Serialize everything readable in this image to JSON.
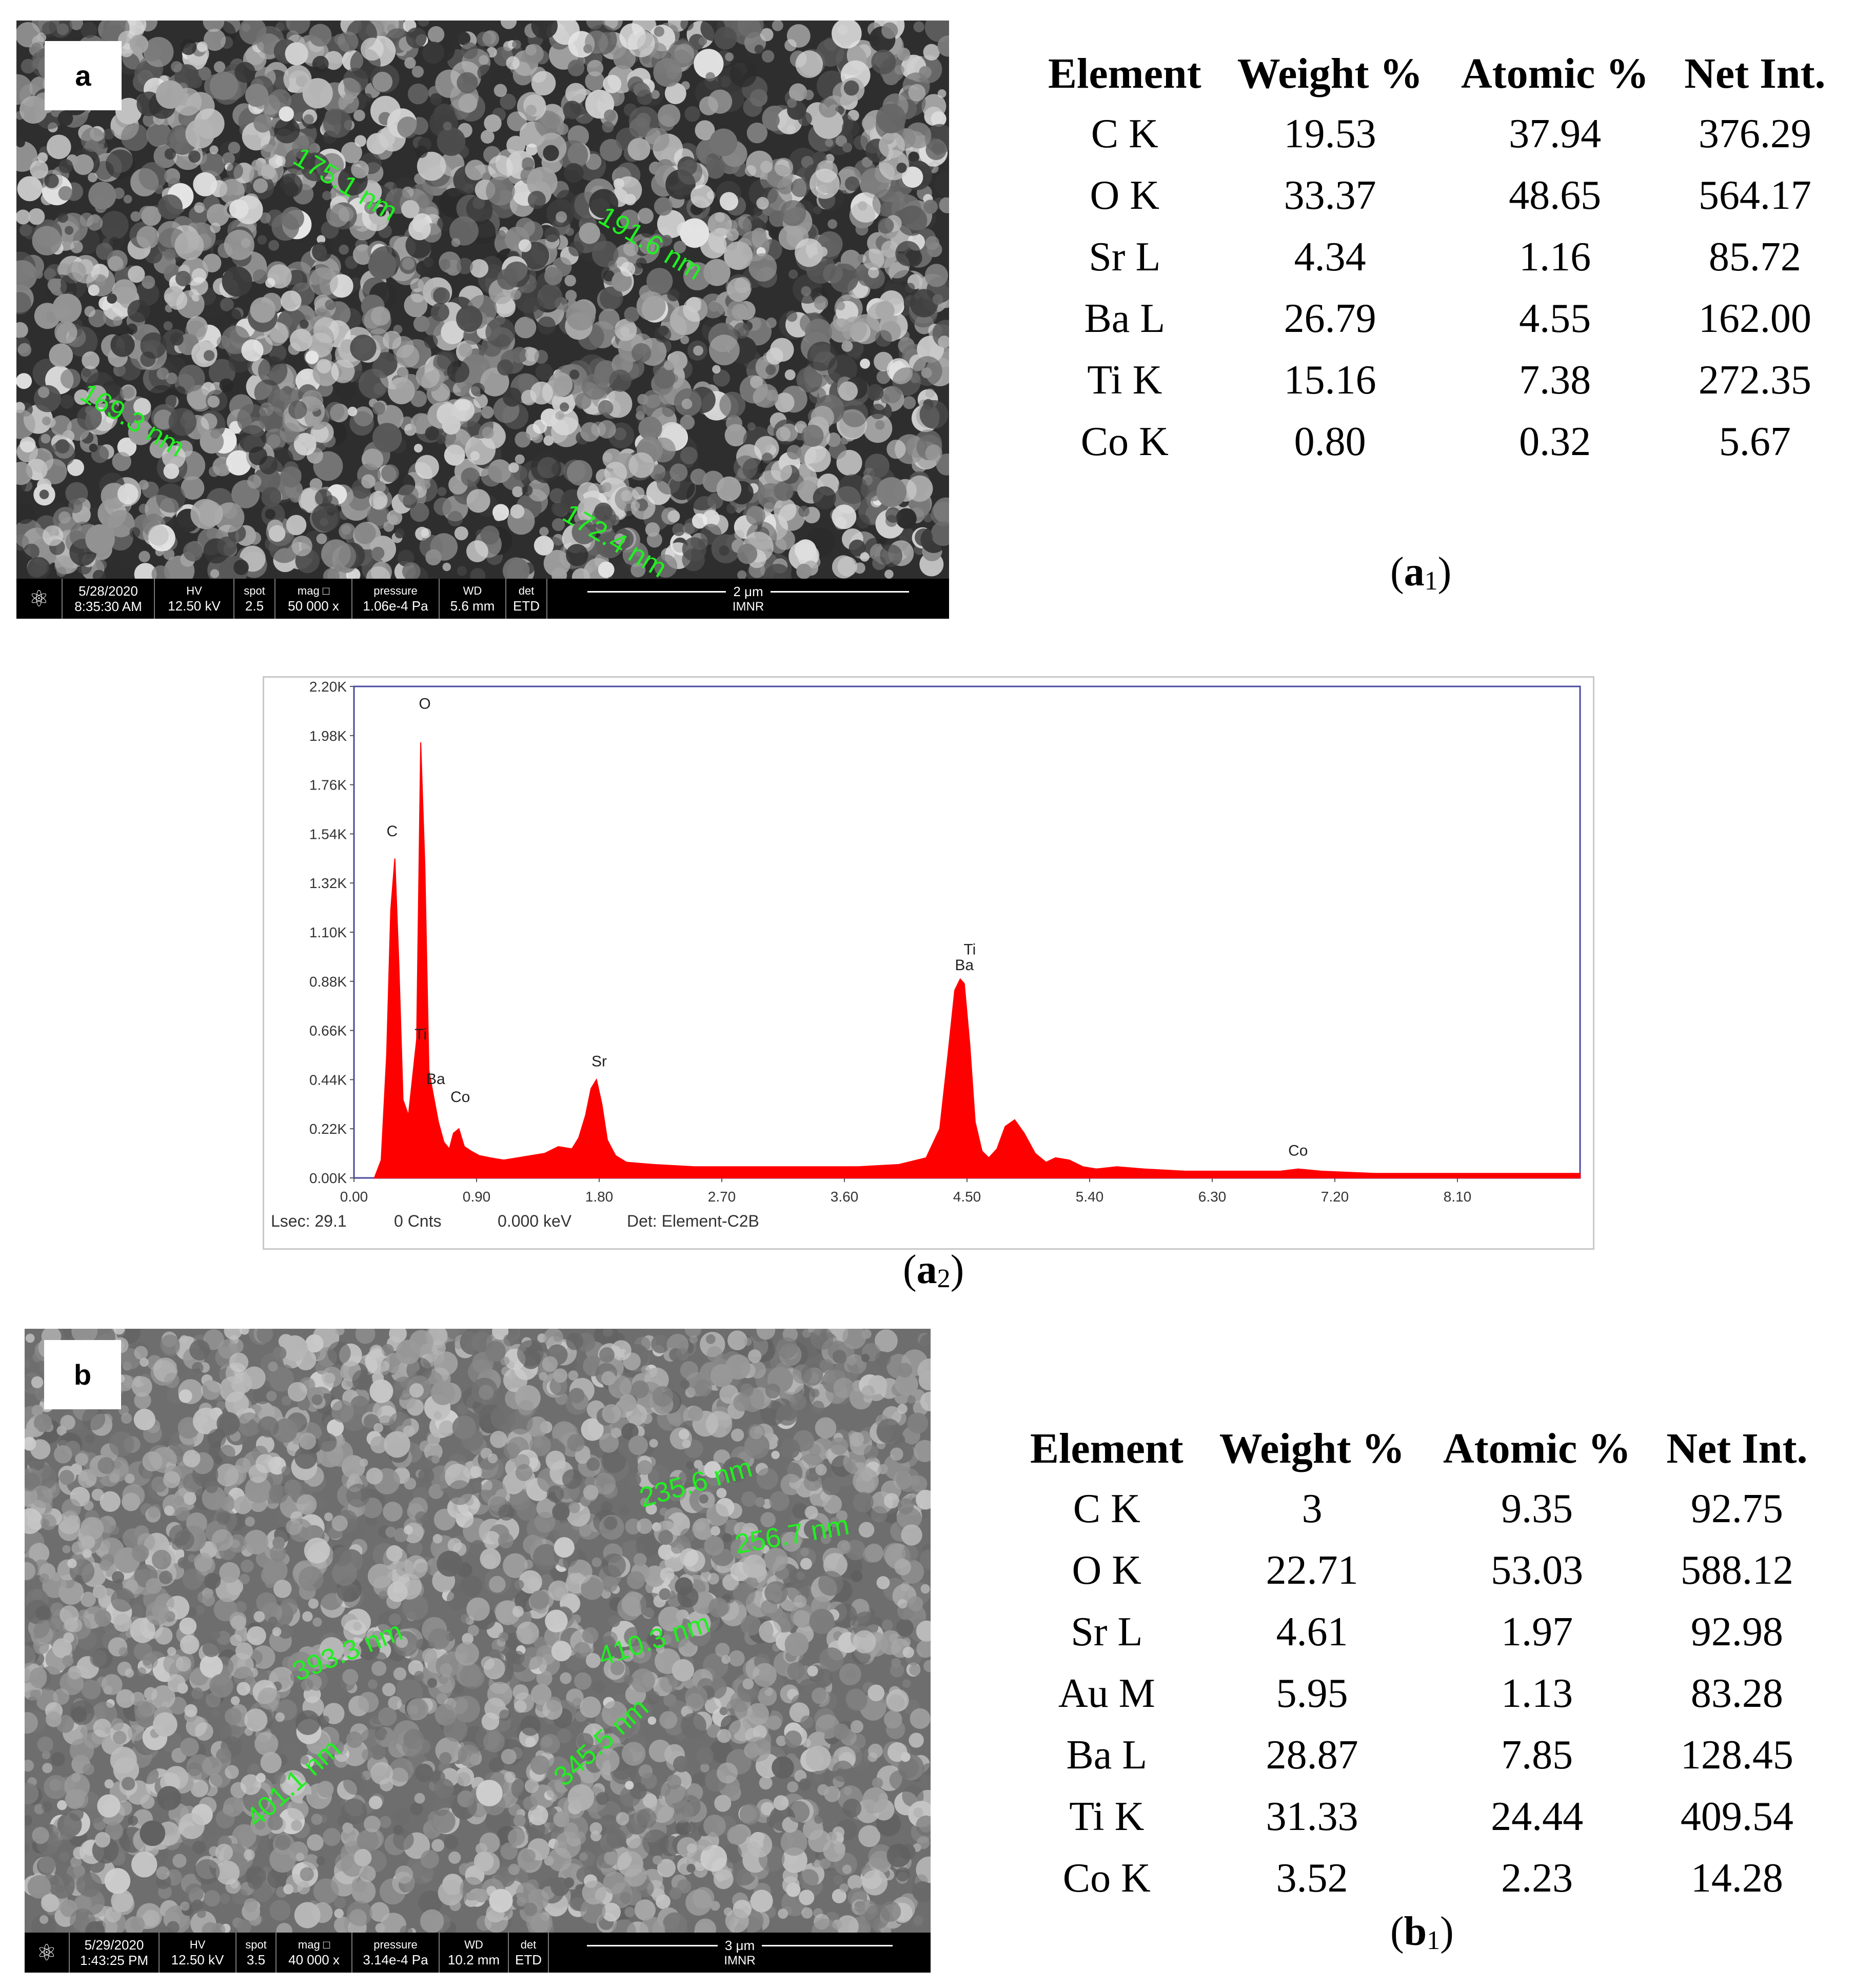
{
  "sem_a": {
    "panel_letter": "a",
    "measurements": [
      "175.1 nm",
      "191.6 nm",
      "169.3 nm",
      "172.4 nm"
    ],
    "info": {
      "date": "5/28/2020",
      "time": "8:35:30 AM",
      "hv_label": "HV",
      "hv": "12.50 kV",
      "spot_label": "spot",
      "spot": "2.5",
      "mag_label": "mag",
      "mag": "50 000 x",
      "pressure_label": "pressure",
      "pressure": "1.06e-4 Pa",
      "wd_label": "WD",
      "wd": "5.6 mm",
      "det_label": "det",
      "det": "ETD",
      "scale": "2 μm",
      "institute": "IMNR"
    }
  },
  "table_a1": {
    "headers": [
      "Element",
      "Weight %",
      "Atomic %",
      "Net Int."
    ],
    "rows": [
      [
        "C K",
        "19.53",
        "37.94",
        "376.29"
      ],
      [
        "O K",
        "33.37",
        "48.65",
        "564.17"
      ],
      [
        "Sr L",
        "4.34",
        "1.16",
        "85.72"
      ],
      [
        "Ba L",
        "26.79",
        "4.55",
        "162.00"
      ],
      [
        "Ti K",
        "15.16",
        "7.38",
        "272.35"
      ],
      [
        "Co K",
        "0.80",
        "0.32",
        "5.67"
      ]
    ]
  },
  "caption_a1": {
    "letter": "a",
    "sub": "1"
  },
  "chart_data": {
    "type": "line",
    "title": "",
    "xlabel": "",
    "ylabel": "",
    "xlim": [
      0,
      9.0
    ],
    "ylim": [
      0,
      2.2
    ],
    "x_ticks": [
      "0.00",
      "0.90",
      "1.80",
      "2.70",
      "3.60",
      "4.50",
      "5.40",
      "6.30",
      "7.20",
      "8.10"
    ],
    "y_ticks": [
      "0.00K",
      "0.22K",
      "0.44K",
      "0.66K",
      "0.88K",
      "1.10K",
      "1.32K",
      "1.54K",
      "1.76K",
      "1.98K",
      "2.20K"
    ],
    "series": [
      {
        "color": "#ff0000",
        "x": [
          0.15,
          0.2,
          0.24,
          0.27,
          0.3,
          0.33,
          0.36,
          0.4,
          0.43,
          0.46,
          0.49,
          0.52,
          0.55,
          0.58,
          0.62,
          0.66,
          0.7,
          0.73,
          0.77,
          0.81,
          0.86,
          0.92,
          1.0,
          1.1,
          1.2,
          1.3,
          1.4,
          1.5,
          1.6,
          1.65,
          1.7,
          1.74,
          1.78,
          1.82,
          1.86,
          1.92,
          2.0,
          2.2,
          2.5,
          2.8,
          3.1,
          3.4,
          3.7,
          4.0,
          4.2,
          4.3,
          4.36,
          4.41,
          4.45,
          4.48,
          4.52,
          4.56,
          4.61,
          4.66,
          4.72,
          4.78,
          4.85,
          4.92,
          5.0,
          5.08,
          5.15,
          5.25,
          5.35,
          5.45,
          5.6,
          5.8,
          6.1,
          6.5,
          6.8,
          6.93,
          7.1,
          7.5,
          8.0,
          8.5,
          9.0
        ],
        "y": [
          0.0,
          0.08,
          0.55,
          1.2,
          1.43,
          0.95,
          0.35,
          0.28,
          0.45,
          0.62,
          1.95,
          1.4,
          0.48,
          0.38,
          0.25,
          0.16,
          0.13,
          0.2,
          0.22,
          0.14,
          0.12,
          0.1,
          0.09,
          0.08,
          0.09,
          0.1,
          0.11,
          0.14,
          0.13,
          0.18,
          0.28,
          0.4,
          0.44,
          0.33,
          0.17,
          0.1,
          0.07,
          0.06,
          0.05,
          0.05,
          0.05,
          0.05,
          0.05,
          0.06,
          0.09,
          0.22,
          0.55,
          0.84,
          0.89,
          0.87,
          0.6,
          0.25,
          0.12,
          0.09,
          0.13,
          0.23,
          0.26,
          0.2,
          0.11,
          0.07,
          0.09,
          0.08,
          0.05,
          0.04,
          0.05,
          0.04,
          0.03,
          0.03,
          0.03,
          0.04,
          0.03,
          0.02,
          0.02,
          0.02,
          0.02
        ]
      }
    ],
    "peak_labels": [
      {
        "text": "O",
        "x": 0.52,
        "y": 2.1
      },
      {
        "text": "C",
        "x": 0.28,
        "y": 1.53
      },
      {
        "text": "Ti",
        "x": 0.49,
        "y": 0.62
      },
      {
        "text": "Ba",
        "x": 0.6,
        "y": 0.42
      },
      {
        "text": "Co",
        "x": 0.78,
        "y": 0.34
      },
      {
        "text": "Sr",
        "x": 1.8,
        "y": 0.5
      },
      {
        "text": "Ti",
        "x": 4.52,
        "y": 1.0
      },
      {
        "text": "Ba",
        "x": 4.48,
        "y": 0.93
      },
      {
        "text": "Co",
        "x": 6.93,
        "y": 0.1
      }
    ],
    "footer": {
      "lsec": "Lsec: 29.1",
      "cnts": "0 Cnts",
      "kev": "0.000 keV",
      "det": "Det: Element-C2B"
    }
  },
  "caption_a2": {
    "letter": "a",
    "sub": "2"
  },
  "sem_b": {
    "panel_letter": "b",
    "measurements": [
      "235.6 nm",
      "256.7 nm",
      "393.3 nm",
      "410.3 nm",
      "401.1 nm",
      "345.5 nm"
    ],
    "info": {
      "date": "5/29/2020",
      "time": "1:43:25 PM",
      "hv_label": "HV",
      "hv": "12.50 kV",
      "spot_label": "spot",
      "spot": "3.5",
      "mag_label": "mag",
      "mag": "40 000 x",
      "pressure_label": "pressure",
      "pressure": "3.14e-4 Pa",
      "wd_label": "WD",
      "wd": "10.2 mm",
      "det_label": "det",
      "det": "ETD",
      "scale": "3 μm",
      "institute": "IMNR"
    }
  },
  "table_b1": {
    "headers": [
      "Element",
      "Weight %",
      "Atomic %",
      "Net Int."
    ],
    "rows": [
      [
        "C K",
        "3",
        "9.35",
        "92.75"
      ],
      [
        "O K",
        "22.71",
        "53.03",
        "588.12"
      ],
      [
        "Sr L",
        "4.61",
        "1.97",
        "92.98"
      ],
      [
        "Au M",
        "5.95",
        "1.13",
        "83.28"
      ],
      [
        "Ba L",
        "28.87",
        "7.85",
        "128.45"
      ],
      [
        "Ti K",
        "31.33",
        "24.44",
        "409.54"
      ],
      [
        "Co K",
        "3.52",
        "2.23",
        "14.28"
      ]
    ]
  },
  "caption_b1": {
    "letter": "b",
    "sub": "1"
  }
}
